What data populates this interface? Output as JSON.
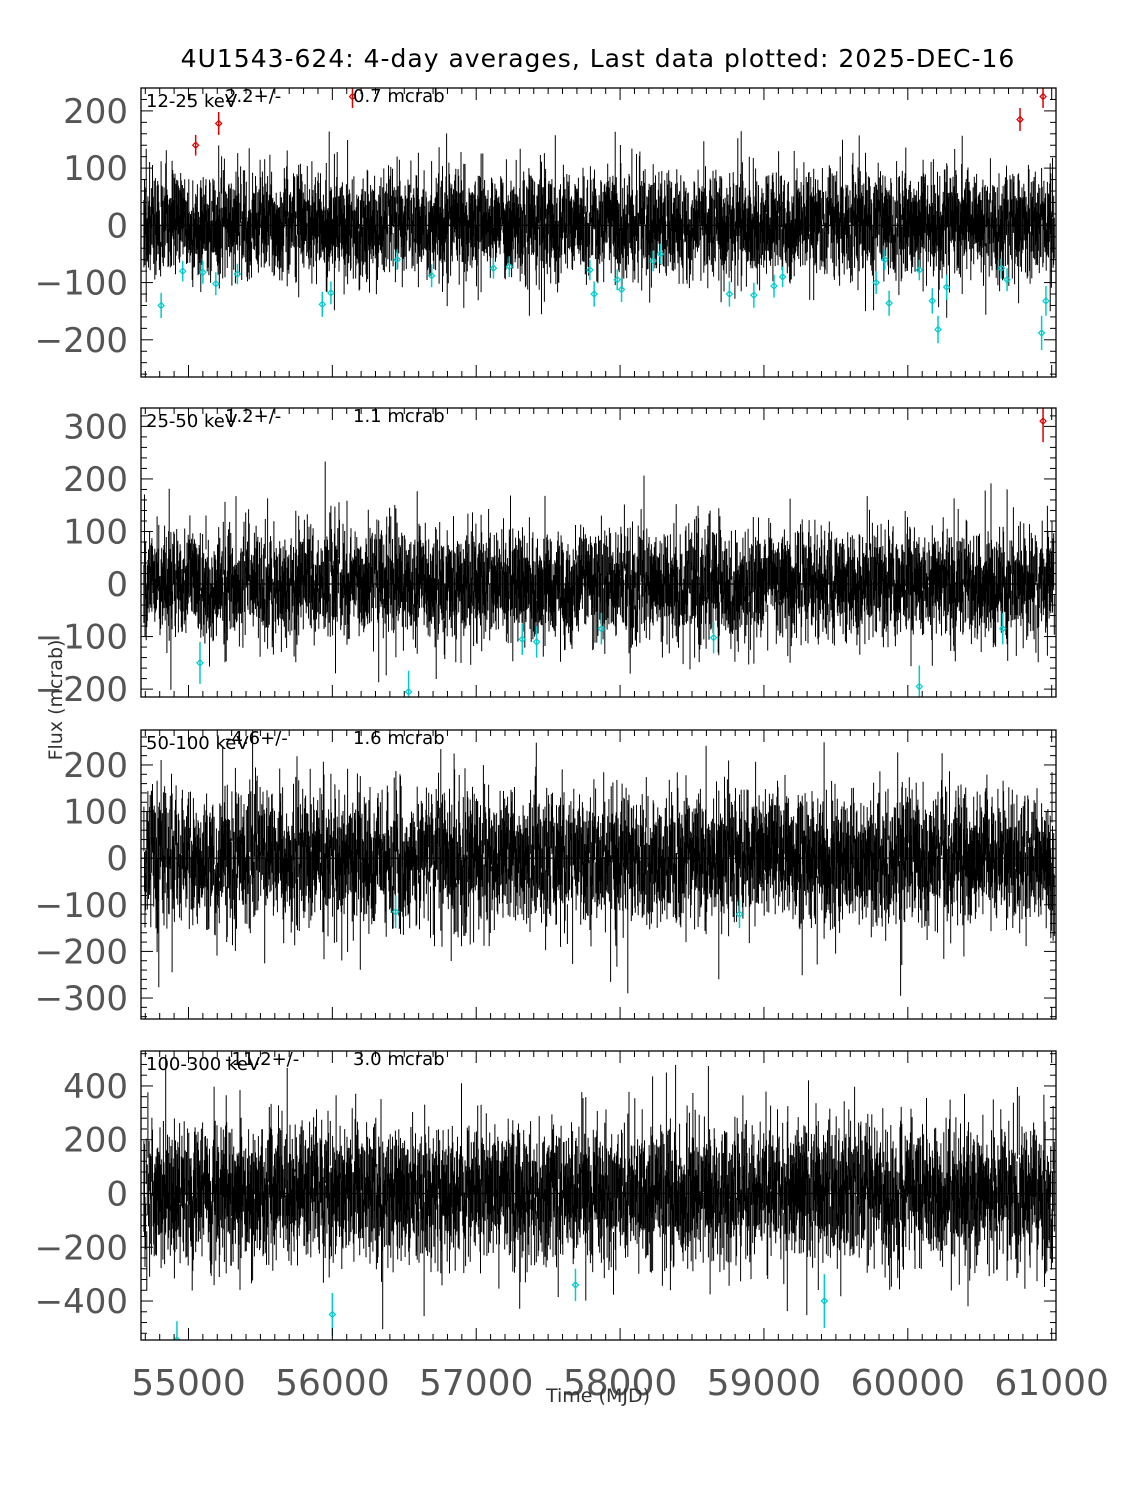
{
  "title": "4U1543-624:  4-day averages,  Last data plotted: 2025-DEC-16",
  "xlabel": "Time (MJD)",
  "ylabel": "Flux (mcrab)",
  "colors": {
    "data": "#000000",
    "high": "#dd0000",
    "low": "#00cccc"
  },
  "chart_data": {
    "type": "scatter",
    "title": "4U1543-624:  4-day averages,  Last data plotted: 2025-DEC-16",
    "xlabel": "Time (MJD)",
    "ylabel": "Flux (mcrab)",
    "xlim": [
      54670,
      61030
    ],
    "x_ticks": [
      55000,
      56000,
      57000,
      58000,
      59000,
      60000,
      61000
    ],
    "x_tick_labels": [
      "55000",
      "56000",
      "57000",
      "58000",
      "59000",
      "60000",
      "61000"
    ],
    "bin_days": 4,
    "panels": [
      {
        "band": "12-25 keV",
        "mean": "2.2",
        "pm": "+/-",
        "error": "0.7 mcrab",
        "ylim": [
          -265,
          240
        ],
        "y_ticks": [
          -200,
          -100,
          0,
          100,
          200
        ],
        "y_tick_labels": [
          "−200",
          "−100",
          "0",
          "100",
          "200"
        ],
        "noise_sigma": 38,
        "err_typical": 40,
        "high_points": [
          {
            "x": 55050,
            "y": 140,
            "err": 18
          },
          {
            "x": 55210,
            "y": 178,
            "err": 20
          },
          {
            "x": 56140,
            "y": 225,
            "err": 20
          },
          {
            "x": 60780,
            "y": 185,
            "err": 20
          },
          {
            "x": 60940,
            "y": 225,
            "err": 20
          }
        ],
        "low_points": [
          {
            "x": 54810,
            "y": -140,
            "err": 22
          },
          {
            "x": 54960,
            "y": -80,
            "err": 18
          },
          {
            "x": 55100,
            "y": -82,
            "err": 20
          },
          {
            "x": 55190,
            "y": -102,
            "err": 20
          },
          {
            "x": 55340,
            "y": -85,
            "err": 18
          },
          {
            "x": 55930,
            "y": -138,
            "err": 22
          },
          {
            "x": 55990,
            "y": -118,
            "err": 20
          },
          {
            "x": 56450,
            "y": -60,
            "err": 18
          },
          {
            "x": 56690,
            "y": -88,
            "err": 20
          },
          {
            "x": 57120,
            "y": -75,
            "err": 18
          },
          {
            "x": 57230,
            "y": -72,
            "err": 18
          },
          {
            "x": 57790,
            "y": -78,
            "err": 18
          },
          {
            "x": 57820,
            "y": -120,
            "err": 22
          },
          {
            "x": 57980,
            "y": -95,
            "err": 18
          },
          {
            "x": 58010,
            "y": -112,
            "err": 22
          },
          {
            "x": 58230,
            "y": -62,
            "err": 18
          },
          {
            "x": 58280,
            "y": -50,
            "err": 18
          },
          {
            "x": 58760,
            "y": -120,
            "err": 22
          },
          {
            "x": 58930,
            "y": -122,
            "err": 22
          },
          {
            "x": 59070,
            "y": -106,
            "err": 20
          },
          {
            "x": 59130,
            "y": -90,
            "err": 18
          },
          {
            "x": 59780,
            "y": -100,
            "err": 20
          },
          {
            "x": 59840,
            "y": -60,
            "err": 18
          },
          {
            "x": 59870,
            "y": -136,
            "err": 22
          },
          {
            "x": 60080,
            "y": -78,
            "err": 18
          },
          {
            "x": 60170,
            "y": -132,
            "err": 22
          },
          {
            "x": 60210,
            "y": -182,
            "err": 24
          },
          {
            "x": 60270,
            "y": -108,
            "err": 22
          },
          {
            "x": 60650,
            "y": -75,
            "err": 18
          },
          {
            "x": 60690,
            "y": -95,
            "err": 20
          },
          {
            "x": 60930,
            "y": -188,
            "err": 30
          },
          {
            "x": 60960,
            "y": -132,
            "err": 26
          }
        ]
      },
      {
        "band": "25-50 keV",
        "mean": "1.2",
        "pm": "+/-",
        "error": "1.1 mcrab",
        "ylim": [
          -215,
          335
        ],
        "y_ticks": [
          -200,
          -100,
          0,
          100,
          200,
          300
        ],
        "y_tick_labels": [
          "−200",
          "−100",
          "0",
          "100",
          "200",
          "300"
        ],
        "noise_sigma": 45,
        "err_typical": 45,
        "high_points": [
          {
            "x": 60940,
            "y": 310,
            "err": 40
          }
        ],
        "low_points": [
          {
            "x": 55080,
            "y": -150,
            "err": 40
          },
          {
            "x": 56530,
            "y": -205,
            "err": 40
          },
          {
            "x": 57320,
            "y": -105,
            "err": 30
          },
          {
            "x": 57420,
            "y": -110,
            "err": 30
          },
          {
            "x": 57870,
            "y": -85,
            "err": 30
          },
          {
            "x": 58650,
            "y": -102,
            "err": 30
          },
          {
            "x": 60080,
            "y": -195,
            "err": 40
          },
          {
            "x": 60660,
            "y": -85,
            "err": 30
          }
        ]
      },
      {
        "band": "50-100 keV",
        "mean": "-4.6",
        "pm": "+/-",
        "error": "1.6 mcrab",
        "ylim": [
          -345,
          275
        ],
        "y_ticks": [
          -300,
          -200,
          -100,
          0,
          100,
          200
        ],
        "y_tick_labels": [
          "−300",
          "−200",
          "−100",
          "0",
          "100",
          "200"
        ],
        "noise_sigma": 62,
        "err_typical": 60,
        "high_points": [],
        "low_points": [
          {
            "x": 56440,
            "y": -115,
            "err": 35
          },
          {
            "x": 58830,
            "y": -120,
            "err": 30
          }
        ]
      },
      {
        "band": "100-300 keV",
        "mean": "-11.2",
        "pm": "+/-",
        "error": "3.0 mcrab",
        "ylim": [
          -545,
          530
        ],
        "y_ticks": [
          -400,
          -200,
          0,
          200,
          400
        ],
        "y_tick_labels": [
          "−400",
          "−200",
          "0",
          "200",
          "400"
        ],
        "noise_sigma": 110,
        "err_typical": 110,
        "high_points": [],
        "low_points": [
          {
            "x": 54920,
            "y": -545,
            "err": 70
          },
          {
            "x": 56000,
            "y": -450,
            "err": 80
          },
          {
            "x": 57690,
            "y": -340,
            "err": 60
          },
          {
            "x": 59420,
            "y": -400,
            "err": 100
          }
        ]
      }
    ]
  }
}
